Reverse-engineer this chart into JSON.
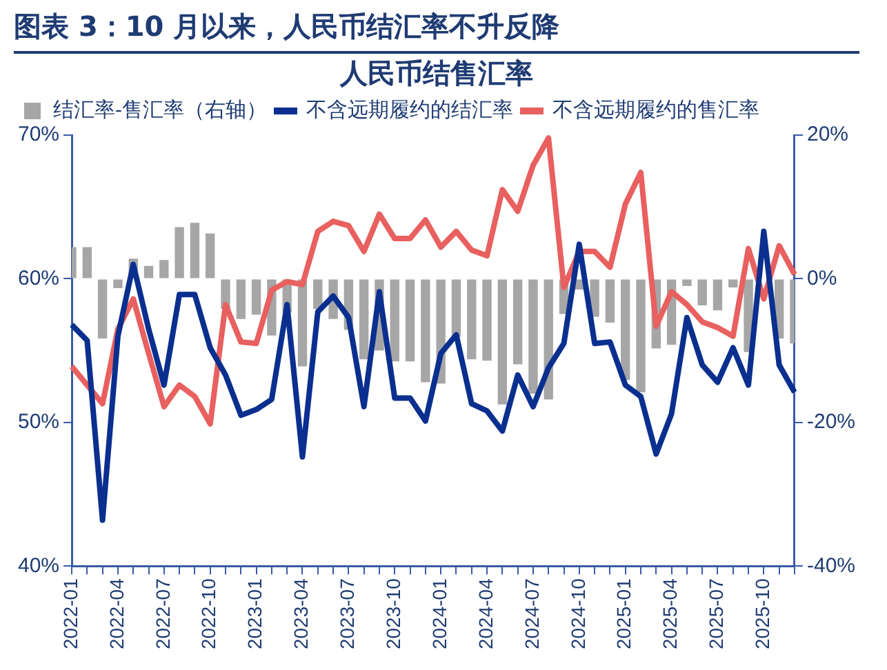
{
  "chart_data": {
    "type": "bar",
    "title": "图表 3：10 月以来，人民币结汇率不升反降",
    "subtitle": "人民币结售汇率",
    "categories": [
      "2022-01",
      null,
      null,
      "2022-04",
      null,
      null,
      "2022-07",
      null,
      null,
      "2022-10",
      null,
      null,
      "2023-01",
      null,
      null,
      "2023-04",
      null,
      null,
      "2023-07",
      null,
      null,
      "2023-10",
      null,
      null,
      "2024-01",
      null,
      null,
      "2024-04",
      null,
      null,
      "2024-07",
      null,
      null,
      "2024-10",
      null,
      null,
      "2025-01",
      null,
      null,
      "2025-04",
      null,
      null,
      "2025-07",
      null,
      null,
      "2025-10",
      null,
      null
    ],
    "series": [
      {
        "name": "结汇率-售汇率（右轴）",
        "axis": "y2",
        "color": "#a6a6a6",
        "values": [
          4.4,
          4.4,
          -8.3,
          -1.3,
          2.8,
          1.8,
          2.6,
          7.2,
          7.8,
          6.3,
          -4.2,
          -5.6,
          -5,
          -7.9,
          -4.7,
          -12.2,
          -4.2,
          -5.6,
          -7.1,
          -11.2,
          -10,
          -11.5,
          -11.5,
          -14.4,
          -14.6,
          -8.1,
          -11.2,
          -11.4,
          -17.5,
          -11.9,
          -16,
          -16.8,
          -4.9,
          -1.5,
          -5.3,
          -6.1,
          -14.1,
          -15.8,
          -9.7,
          -9.2,
          -1,
          -3.7,
          -4.4,
          -1.2,
          -10.2,
          null,
          -8.3,
          -9
        ]
      },
      {
        "name": "不含远期履约的结汇率",
        "type": "line",
        "color": "#0a2f8f",
        "values": [
          56.8,
          55.7,
          43.2,
          56,
          61,
          56.5,
          52.6,
          58.9,
          58.9,
          55.2,
          53.3,
          50.5,
          50.9,
          51.6,
          58.2,
          47.6,
          57.7,
          58.8,
          57.3,
          51.1,
          59.1,
          51.7,
          51.7,
          50.1,
          54.8,
          56.1,
          51.3,
          50.8,
          49.4,
          53.3,
          51.1,
          53.8,
          55.5,
          62.4,
          55.5,
          55.6,
          52.6,
          51.8,
          47.8,
          50.6,
          57.3,
          54,
          52.8,
          55.2,
          52.6,
          63.3,
          54,
          52.1
        ]
      },
      {
        "name": "不含远期履约的售汇率",
        "type": "line",
        "color": "#e8605f",
        "values": [
          53.9,
          52.6,
          51.3,
          56.5,
          58.6,
          54.8,
          51.1,
          52.6,
          51.8,
          49.9,
          58.2,
          55.6,
          55.5,
          59.2,
          59.8,
          59.6,
          63.3,
          64,
          63.7,
          61.9,
          64.5,
          62.8,
          62.8,
          64.1,
          62.2,
          63.3,
          62,
          61.6,
          66.2,
          64.7,
          67.9,
          69.8,
          59.4,
          61.9,
          61.9,
          60.8,
          65.2,
          67.4,
          56.7,
          59.1,
          58.2,
          57,
          56.6,
          56,
          62.1,
          58.6,
          62.3,
          60.3
        ]
      }
    ],
    "ylim": [
      40,
      70
    ],
    "yticks": [
      {
        "value": 40,
        "label": "40%"
      },
      {
        "value": 50,
        "label": "50%"
      },
      {
        "value": 60,
        "label": "60%"
      },
      {
        "value": 70,
        "label": "70%"
      }
    ],
    "y2lim": [
      -40,
      20
    ],
    "y2ticks": [
      {
        "value": -40,
        "label": "-40%"
      },
      {
        "value": -20,
        "label": "-20%"
      },
      {
        "value": 0,
        "label": "0%"
      },
      {
        "value": 20,
        "label": "20%"
      }
    ],
    "grid": false,
    "legend": "top",
    "marker": "none",
    "line_style": "solid"
  }
}
